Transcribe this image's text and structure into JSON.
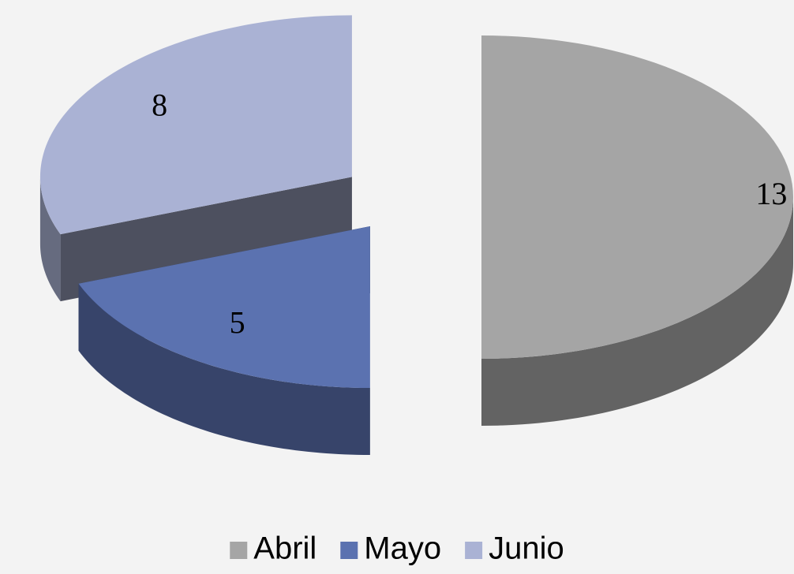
{
  "chart_data": {
    "type": "pie3d",
    "categories": [
      "Abril",
      "Mayo",
      "Junio"
    ],
    "values": [
      13,
      5,
      8
    ],
    "colors": [
      "#a5a5a5",
      "#5b72b0",
      "#aab2d4"
    ],
    "legend": "bottom"
  }
}
